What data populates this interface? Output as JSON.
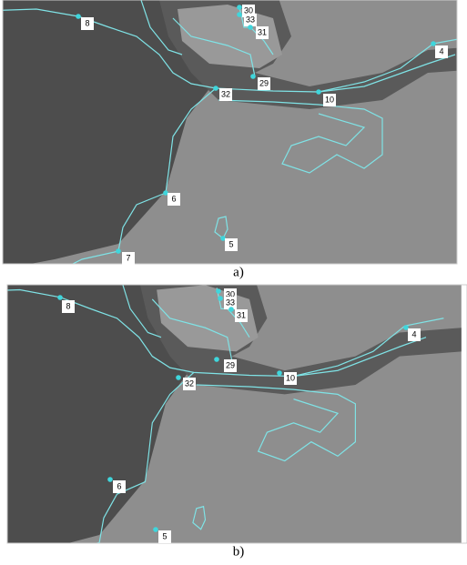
{
  "panels": [
    {
      "caption": "a)",
      "labels": [
        "8",
        "30",
        "33",
        "31",
        "4",
        "29",
        "32",
        "10",
        "6",
        "5",
        "7"
      ]
    },
    {
      "caption": "b)",
      "labels": [
        "8",
        "30",
        "33",
        "31",
        "4",
        "29",
        "32",
        "10",
        "6",
        "5"
      ]
    }
  ]
}
